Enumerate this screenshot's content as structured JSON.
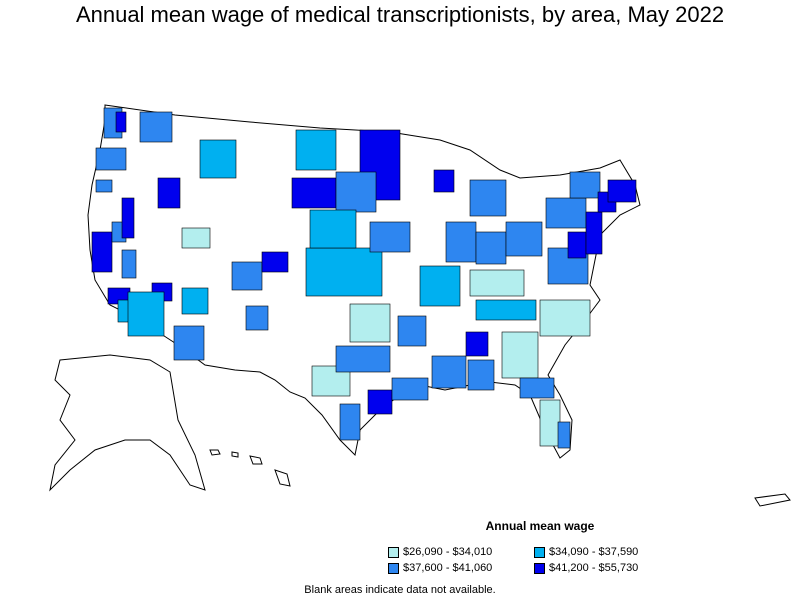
{
  "title": "Annual mean wage of medical transcriptionists, by area, May 2022",
  "legend": {
    "title": "Annual mean wage",
    "items": [
      {
        "label": "$26,090 - $34,010",
        "color": "#b3eeee"
      },
      {
        "label": "$34,090 - $37,590",
        "color": "#00b0f0"
      },
      {
        "label": "$37,600 - $41,060",
        "color": "#2e86f0"
      },
      {
        "label": "$41,200 - $55,730",
        "color": "#0000ee"
      }
    ]
  },
  "footnote": "Blank areas indicate data not available.",
  "colors": {
    "no_data": "#ffffff",
    "border": "#000000"
  }
}
